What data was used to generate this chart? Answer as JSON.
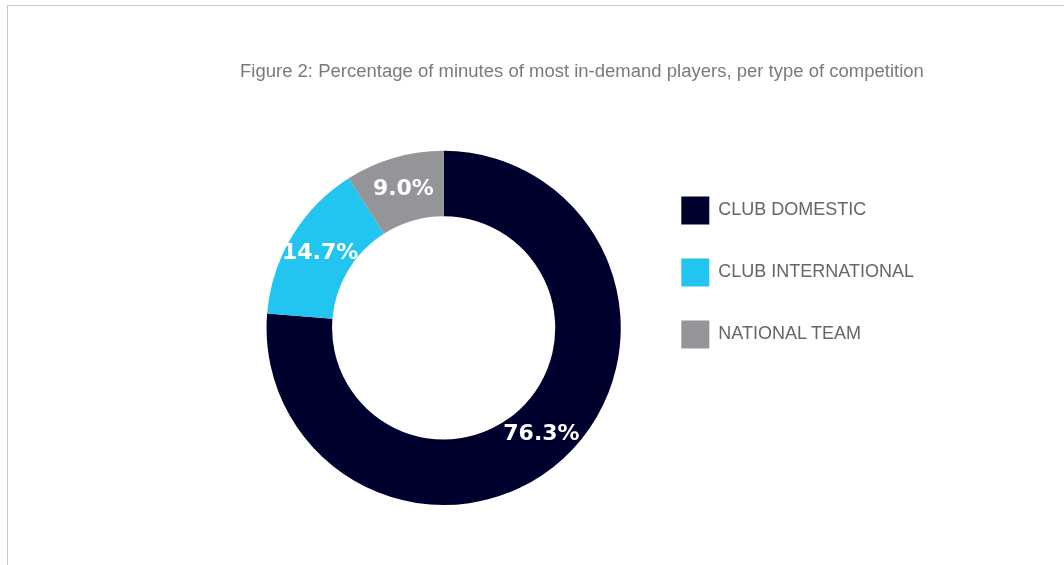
{
  "chart_data": {
    "type": "donut",
    "title": "Figure 2: Percentage of minutes of most in-demand players, per type of competition",
    "categories": [
      "CLUB DOMESTIC",
      "CLUB INTERNATIONAL",
      "NATIONAL TEAM"
    ],
    "values": [
      76.3,
      14.7,
      9.0
    ],
    "value_labels": [
      "76.3%",
      "14.7%",
      "9.0%"
    ],
    "colors": [
      "#00002e",
      "#22c4f0",
      "#939598"
    ],
    "legend": "right"
  }
}
